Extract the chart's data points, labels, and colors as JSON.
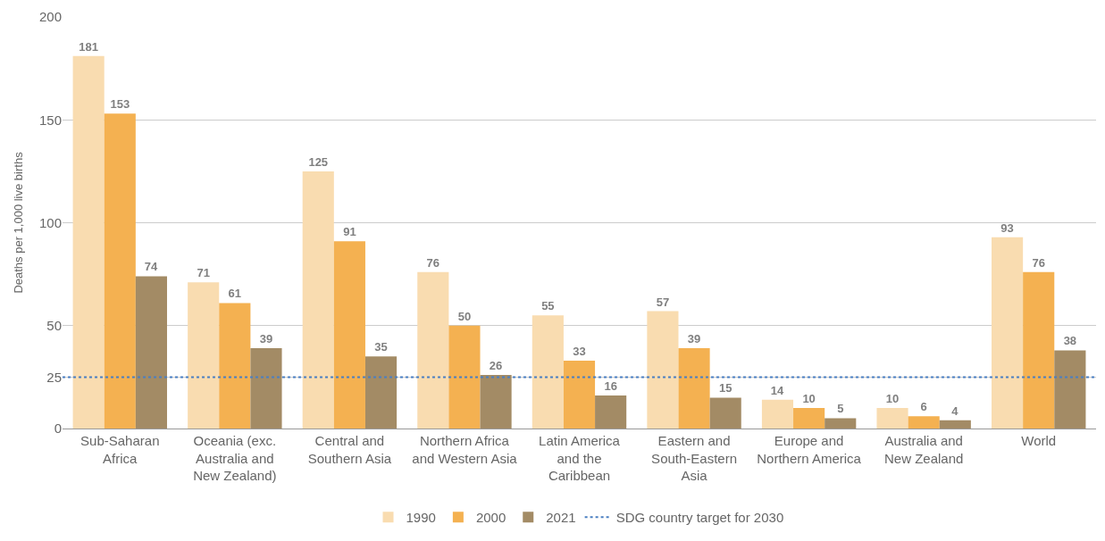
{
  "chart_data": {
    "type": "bar",
    "ylabel": "Deaths per 1,000 live births",
    "categories": [
      "Sub-Saharan Africa",
      "Oceania (exc. Australia and New Zealand)",
      "Central and Southern Asia",
      "Northern Africa and Western Asia",
      "Latin America and the Caribbean",
      "Eastern and South-Eastern Asia",
      "Europe and Northern America",
      "Australia and New Zealand",
      "World"
    ],
    "series": [
      {
        "name": "1990",
        "color": "#f9dcb0",
        "values": [
          181,
          71,
          125,
          76,
          55,
          57,
          14,
          10,
          93
        ]
      },
      {
        "name": "2000",
        "color": "#f4b151",
        "values": [
          153,
          61,
          91,
          50,
          33,
          39,
          10,
          6,
          76
        ]
      },
      {
        "name": "2021",
        "color": "#a38b65",
        "values": [
          74,
          39,
          35,
          26,
          16,
          15,
          5,
          4,
          38
        ]
      }
    ],
    "ylim": [
      0,
      200
    ],
    "yticks": [
      0,
      25,
      50,
      100,
      150,
      200
    ],
    "ref_lines": [
      {
        "axis": "y",
        "value": 25,
        "label": "SDG country target for 2030",
        "color": "#4a7fc1",
        "line_style": "dotted"
      }
    ],
    "data_labels": true,
    "grid": "y",
    "legend": "bottom"
  }
}
